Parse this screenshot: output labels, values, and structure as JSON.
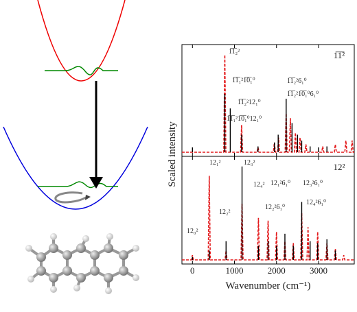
{
  "chart_data": [
    {
      "type": "stem",
      "title": "1̅1̅²",
      "ylabel": "Scaled intensity",
      "xlim": [
        -250,
        3850
      ],
      "xticks": [
        0,
        1000,
        2000,
        3000
      ],
      "ylim": [
        0,
        1.05
      ],
      "sticks": {
        "color": "#000000",
        "x": [
          0,
          770,
          900,
          1170,
          1560,
          1950,
          2040,
          2230,
          2370,
          2500,
          2600,
          2800,
          3000,
          3200
        ],
        "values": [
          0.05,
          0.6,
          0.45,
          0.18,
          0.06,
          0.1,
          0.18,
          0.55,
          0.3,
          0.18,
          0.12,
          0.06,
          0.05,
          0.06
        ]
      },
      "broadened": {
        "color": "#e31a1c",
        "style": "dashed",
        "x": [
          -250,
          745,
          770,
          795,
          1145,
          1170,
          1195,
          1535,
          1560,
          1585,
          1925,
          1950,
          1975,
          2025,
          2050,
          2075,
          2205,
          2230,
          2255,
          2305,
          2330,
          2355,
          2425,
          2450,
          2475,
          2535,
          2560,
          2585,
          2675,
          2700,
          2725,
          3075,
          3100,
          3125,
          3375,
          3400,
          3425,
          3625,
          3650,
          3675,
          3775,
          3800,
          3825,
          3850
        ],
        "values": [
          0,
          0,
          1.0,
          0,
          0,
          0.28,
          0,
          0,
          0.05,
          0,
          0,
          0.1,
          0,
          0,
          0.15,
          0,
          0,
          0.4,
          0,
          0,
          0.35,
          0,
          0,
          0.2,
          0,
          0,
          0.15,
          0,
          0,
          0.08,
          0,
          0,
          0.06,
          0,
          0,
          0.08,
          0,
          0,
          0.12,
          0,
          0,
          0.12,
          0,
          0
        ]
      },
      "annotations": [
        "1̅1̅₂²",
        "1̅1̅₁²1̅0̅₁⁰",
        "1̅1̅₂²12₁⁰",
        "1̅1̅₁²1̅0̅₁⁰12₁⁰",
        "1̅1̅₂²6₁⁰",
        "1̅1̅₂²1̅0̅₁⁰6₁⁰"
      ]
    },
    {
      "type": "stem",
      "title": "12²",
      "xlabel": "Wavenumber (cm⁻¹)",
      "xlim": [
        -250,
        3850
      ],
      "xticks": [
        0,
        1000,
        2000,
        3000
      ],
      "ylim": [
        0,
        1.05
      ],
      "sticks": {
        "color": "#000000",
        "x": [
          0,
          400,
          800,
          1180,
          1570,
          1800,
          2000,
          2200,
          2400,
          2600,
          2800,
          2980,
          3200,
          3400
        ],
        "values": [
          0.03,
          0.1,
          0.2,
          1.0,
          0.15,
          0.2,
          0.15,
          0.28,
          0.15,
          0.62,
          0.2,
          0.18,
          0.22,
          0.1
        ]
      },
      "broadened": {
        "color": "#e31a1c",
        "style": "dashed",
        "x": [
          -250,
          -25,
          0,
          25,
          375,
          400,
          425,
          775,
          800,
          825,
          1155,
          1180,
          1205,
          1545,
          1570,
          1595,
          1775,
          1800,
          1825,
          1975,
          2000,
          2025,
          2175,
          2200,
          2225,
          2375,
          2400,
          2425,
          2575,
          2600,
          2625,
          2725,
          2750,
          2775,
          2955,
          2980,
          3005,
          3175,
          3200,
          3225,
          3375,
          3400,
          3425,
          3575,
          3600,
          3625,
          3850
        ],
        "values": [
          0,
          0,
          0.05,
          0,
          0,
          0.9,
          0,
          0,
          0.1,
          0,
          0,
          0.6,
          0,
          0,
          0.45,
          0,
          0,
          0.42,
          0,
          0,
          0.3,
          0,
          0,
          0.2,
          0,
          0,
          0.18,
          0,
          0,
          0.5,
          0,
          0,
          0.35,
          0,
          0,
          0.3,
          0,
          0,
          0.18,
          0,
          0,
          0.12,
          0,
          0,
          0.05,
          0,
          0
        ]
      },
      "annotations": [
        "12₀²",
        "12₁²",
        "12₂²",
        "12₃²",
        "12₄²",
        "12₁²6₁⁰",
        "12₂²6₁⁰",
        "12₃²6₁⁰",
        "12₄²6₁⁰"
      ]
    }
  ]
}
